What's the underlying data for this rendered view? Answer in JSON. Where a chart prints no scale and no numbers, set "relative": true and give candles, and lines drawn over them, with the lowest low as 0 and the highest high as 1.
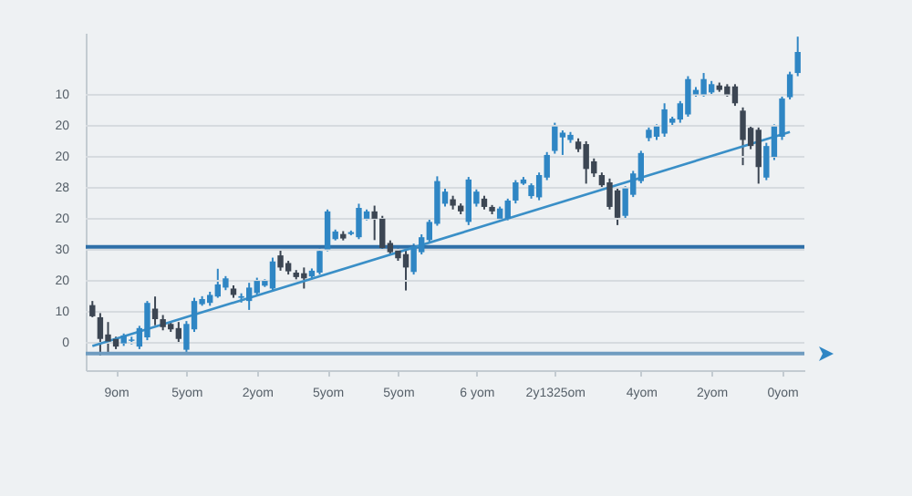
{
  "chart_data": {
    "type": "candlestick",
    "relative": true,
    "categories": [
      null,
      null,
      null,
      "9om",
      null,
      null,
      null,
      null,
      null,
      null,
      null,
      null,
      "5yom",
      null,
      null,
      null,
      null,
      null,
      null,
      null,
      null,
      "2yom",
      null,
      null,
      null,
      null,
      null,
      null,
      null,
      null,
      "5yom",
      null,
      null,
      null,
      null,
      null,
      null,
      null,
      null,
      "5yom",
      null,
      null,
      null,
      null,
      null,
      null,
      null,
      null,
      null,
      "6 yom",
      null,
      null,
      null,
      null,
      null,
      null,
      null,
      null,
      null,
      "2y1325om",
      null,
      null,
      null,
      null,
      null,
      null,
      null,
      null,
      null,
      null,
      "4yom",
      null,
      null,
      null,
      null,
      null,
      null,
      null,
      null,
      "2yom",
      null,
      null,
      null,
      null,
      null,
      null,
      null,
      null,
      "0yom",
      null,
      null
    ],
    "ohlc": [
      [
        0.158,
        0.171,
        0.12,
        0.123
      ],
      [
        0.12,
        0.133,
        0,
        0.052
      ],
      [
        0.066,
        0.105,
        0.01,
        0.044
      ],
      [
        0.052,
        0.059,
        0.02,
        0.028
      ],
      [
        0.038,
        0.069,
        0.03,
        0.063
      ],
      [
        0.046,
        0.059,
        0.035,
        0.05
      ],
      [
        0.028,
        0.093,
        0.02,
        0.086
      ],
      [
        0.057,
        0.171,
        0.048,
        0.165
      ],
      [
        0.147,
        0.185,
        0.095,
        0.114
      ],
      [
        0.114,
        0.127,
        0.079,
        0.089
      ],
      [
        0.099,
        0.108,
        0.074,
        0.082
      ],
      [
        0.086,
        0.105,
        0.038,
        0.052
      ],
      [
        0.018,
        0.108,
        0.011,
        0.099
      ],
      [
        0.082,
        0.181,
        0.074,
        0.171
      ],
      [
        0.161,
        0.186,
        0.156,
        0.177
      ],
      [
        0.165,
        0.2,
        0.156,
        0.19
      ],
      [
        0.185,
        0.272,
        0.181,
        0.223
      ],
      [
        0.213,
        0.249,
        0.205,
        0.242
      ],
      [
        0.21,
        0.22,
        0.181,
        0.19
      ],
      [
        0.181,
        0.195,
        0.166,
        0.186
      ],
      [
        0.171,
        0.228,
        0.143,
        0.213
      ],
      [
        0.196,
        0.244,
        0.19,
        0.234
      ],
      [
        0.219,
        0.239,
        0.215,
        0.234
      ],
      [
        0.21,
        0.307,
        0.205,
        0.295
      ],
      [
        0.314,
        0.329,
        0.266,
        0.276
      ],
      [
        0.29,
        0.297,
        0.254,
        0.264
      ],
      [
        0.26,
        0.268,
        0.239,
        0.246
      ],
      [
        0.258,
        0.276,
        0.21,
        0.242
      ],
      [
        0.248,
        0.273,
        0.239,
        0.266
      ],
      [
        0.26,
        0.336,
        0.254,
        0.328
      ],
      [
        0.333,
        0.458,
        0.327,
        0.452
      ],
      [
        0.365,
        0.395,
        0.361,
        0.389
      ],
      [
        0.381,
        0.39,
        0.361,
        0.367
      ],
      [
        0.381,
        0.392,
        0.377,
        0.387
      ],
      [
        0.371,
        0.476,
        0.365,
        0.463
      ],
      [
        0.429,
        0.458,
        0.424,
        0.452
      ],
      [
        0.452,
        0.47,
        0.362,
        0.429
      ],
      [
        0.429,
        0.438,
        0.329,
        0.337
      ],
      [
        0.353,
        0.361,
        0.317,
        0.324
      ],
      [
        0.329,
        0.336,
        0.297,
        0.305
      ],
      [
        0.318,
        0.333,
        0.204,
        0.276
      ],
      [
        0.262,
        0.351,
        0.254,
        0.343
      ],
      [
        0.324,
        0.38,
        0.317,
        0.371
      ],
      [
        0.362,
        0.429,
        0.356,
        0.419
      ],
      [
        0.413,
        0.562,
        0.407,
        0.547
      ],
      [
        0.476,
        0.526,
        0.467,
        0.514
      ],
      [
        0.49,
        0.501,
        0.458,
        0.47
      ],
      [
        0.47,
        0.477,
        0.443,
        0.452
      ],
      [
        0.419,
        0.56,
        0.409,
        0.552
      ],
      [
        0.476,
        0.521,
        0.467,
        0.514
      ],
      [
        0.492,
        0.501,
        0.458,
        0.466
      ],
      [
        0.466,
        0.472,
        0.443,
        0.452
      ],
      [
        0.429,
        0.467,
        0.424,
        0.461
      ],
      [
        0.429,
        0.492,
        0.424,
        0.486
      ],
      [
        0.486,
        0.55,
        0.477,
        0.543
      ],
      [
        0.539,
        0.56,
        0.535,
        0.552
      ],
      [
        0.5,
        0.54,
        0.492,
        0.534
      ],
      [
        0.496,
        0.574,
        0.487,
        0.566
      ],
      [
        0.558,
        0.638,
        0.55,
        0.629
      ],
      [
        0.642,
        0.73,
        0.633,
        0.718
      ],
      [
        0.684,
        0.706,
        0.629,
        0.699
      ],
      [
        0.676,
        0.701,
        0.667,
        0.692
      ],
      [
        0.671,
        0.681,
        0.638,
        0.647
      ],
      [
        0.663,
        0.672,
        0.539,
        0.585
      ],
      [
        0.609,
        0.618,
        0.56,
        0.571
      ],
      [
        0.566,
        0.574,
        0.526,
        0.534
      ],
      [
        0.543,
        0.555,
        0.458,
        0.466
      ],
      [
        0.518,
        0.526,
        0.409,
        0.432
      ],
      [
        0.438,
        0.531,
        0.429,
        0.524
      ],
      [
        0.504,
        0.579,
        0.497,
        0.571
      ],
      [
        0.547,
        0.642,
        0.54,
        0.635
      ],
      [
        0.682,
        0.715,
        0.672,
        0.708
      ],
      [
        0.686,
        0.725,
        0.676,
        0.718
      ],
      [
        0.696,
        0.791,
        0.686,
        0.772
      ],
      [
        0.73,
        0.749,
        0.72,
        0.743
      ],
      [
        0.74,
        0.798,
        0.73,
        0.791
      ],
      [
        0.756,
        0.876,
        0.749,
        0.867
      ],
      [
        0.819,
        0.842,
        0.812,
        0.833
      ],
      [
        0.819,
        0.886,
        0.812,
        0.867
      ],
      [
        0.825,
        0.861,
        0.817,
        0.851
      ],
      [
        0.847,
        0.856,
        0.827,
        0.833
      ],
      [
        0.844,
        0.851,
        0.812,
        0.819
      ],
      [
        0.844,
        0.851,
        0.783,
        0.791
      ],
      [
        0.768,
        0.778,
        0.597,
        0.676
      ],
      [
        0.714,
        0.72,
        0.647,
        0.657
      ],
      [
        0.708,
        0.715,
        0.539,
        0.591
      ],
      [
        0.558,
        0.667,
        0.55,
        0.657
      ],
      [
        0.623,
        0.725,
        0.613,
        0.718
      ],
      [
        0.686,
        0.812,
        0.676,
        0.806
      ],
      [
        0.81,
        0.89,
        0.803,
        0.882
      ],
      [
        0.886,
        1,
        0.876,
        0.952
      ]
    ],
    "colors": [
      "#3c4653",
      "#3c4653",
      "#3c4653",
      "#3c4653",
      "#2f86c4",
      "#2f86c4",
      "#2f86c4",
      "#2f86c4",
      "#3c4653",
      "#3c4653",
      "#3c4653",
      "#3c4653",
      "#2f86c4",
      "#2f86c4",
      "#2f86c4",
      "#2f86c4",
      "#2f86c4",
      "#2f86c4",
      "#3c4653",
      "#2f86c4",
      "#2f86c4",
      "#2f86c4",
      "#2f86c4",
      "#2f86c4",
      "#3c4653",
      "#3c4653",
      "#3c4653",
      "#3c4653",
      "#2f86c4",
      "#2f86c4",
      "#2f86c4",
      "#2f86c4",
      "#3c4653",
      "#2f86c4",
      "#2f86c4",
      "#2f86c4",
      "#3c4653",
      "#3c4653",
      "#3c4653",
      "#3c4653",
      "#3c4653",
      "#2f86c4",
      "#2f86c4",
      "#2f86c4",
      "#2f86c4",
      "#2f86c4",
      "#3c4653",
      "#3c4653",
      "#2f86c4",
      "#2f86c4",
      "#3c4653",
      "#3c4653",
      "#2f86c4",
      "#2f86c4",
      "#2f86c4",
      "#2f86c4",
      "#2f86c4",
      "#2f86c4",
      "#2f86c4",
      "#2f86c4",
      "#2f86c4",
      "#2f86c4",
      "#3c4653",
      "#3c4653",
      "#3c4653",
      "#3c4653",
      "#3c4653",
      "#3c4653",
      "#2f86c4",
      "#2f86c4",
      "#2f86c4",
      "#2f86c4",
      "#2f86c4",
      "#2f86c4",
      "#2f86c4",
      "#2f86c4",
      "#2f86c4",
      "#2f86c4",
      "#2f86c4",
      "#2f86c4",
      "#3c4653",
      "#3c4653",
      "#3c4653",
      "#3c4653",
      "#3c4653",
      "#3c4653",
      "#2f86c4",
      "#2f86c4",
      "#2f86c4",
      "#2f86c4",
      "#2f86c4"
    ],
    "series": [
      {
        "type": "line",
        "color": "#3a8fc7",
        "values": [
          0.03,
          null,
          null,
          null,
          null,
          null,
          null,
          null,
          null,
          null,
          null,
          null,
          null,
          null,
          null,
          null,
          null,
          null,
          null,
          null,
          null,
          null,
          null,
          null,
          null,
          null,
          null,
          null,
          null,
          null,
          null,
          null,
          null,
          null,
          null,
          null,
          null,
          null,
          null,
          null,
          null,
          null,
          null,
          null,
          null,
          null,
          null,
          null,
          null,
          null,
          null,
          null,
          null,
          null,
          null,
          null,
          null,
          null,
          null,
          null,
          null,
          null,
          null,
          null,
          null,
          null,
          null,
          null,
          null,
          null,
          null,
          null,
          null,
          null,
          null,
          null,
          null,
          null,
          null,
          null,
          null,
          null,
          null,
          null,
          null,
          null,
          null,
          null,
          null,
          0.701,
          null
        ]
      }
    ],
    "ref_lines": [
      {
        "axis": "y",
        "value": 0.341,
        "color": "#2e6fa8"
      },
      {
        "axis": "y",
        "value": 0.006,
        "color": "#6f9cc0"
      }
    ],
    "annotations": [
      "10",
      "20",
      "20",
      "28",
      "20",
      "30",
      "20",
      "10",
      "0"
    ],
    "grid": "y"
  }
}
